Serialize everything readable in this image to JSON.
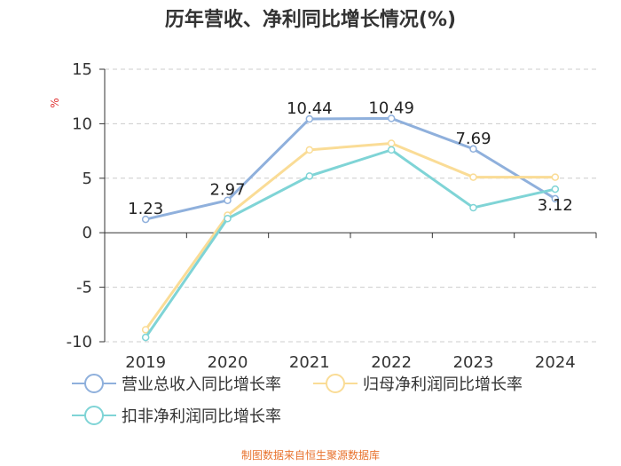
{
  "chart_data": {
    "type": "line",
    "title": "历年营收、净利同比增长情况(%)",
    "ylabel": "%",
    "categories": [
      "2019",
      "2020",
      "2021",
      "2022",
      "2023",
      "2024"
    ],
    "ylim": [
      -10,
      15
    ],
    "yticks": [
      "15",
      "10",
      "5",
      "0",
      "-5",
      "-10"
    ],
    "grid": true,
    "series": [
      {
        "name": "营业总收入同比增长率",
        "color": "#8fb0dc",
        "values": [
          1.23,
          2.97,
          10.44,
          10.49,
          7.69,
          3.12
        ],
        "labels": [
          "1.23",
          "2.97",
          "10.44",
          "10.49",
          "7.69",
          "3.12"
        ]
      },
      {
        "name": "归母净利润同比增长率",
        "color": "#fadc96",
        "values": [
          -8.9,
          1.6,
          7.6,
          8.2,
          5.1,
          5.1
        ]
      },
      {
        "name": "扣非净利润同比增长率",
        "color": "#7fd4d6",
        "values": [
          -9.6,
          1.3,
          5.2,
          7.6,
          2.3,
          4.0
        ]
      }
    ],
    "legend_position": "bottom",
    "source": "制图数据来自恒生聚源数据库",
    "source_color": "#e8732e",
    "unit_color": "#e03030",
    "axis_color": "#333333",
    "grid_color": "#cccccc"
  }
}
